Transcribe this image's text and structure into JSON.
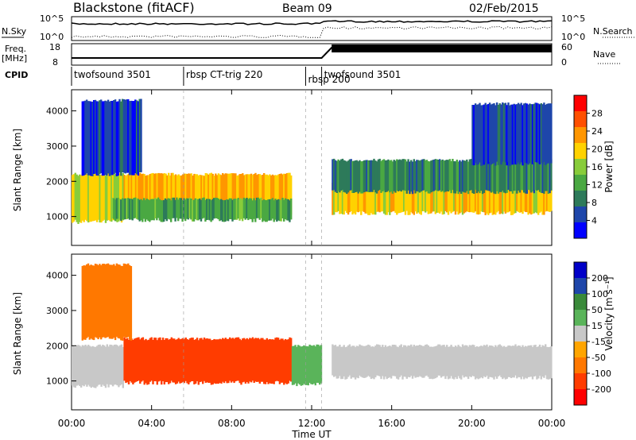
{
  "header": {
    "station": "Blackstone (fitACF)",
    "beam": "Beam 09",
    "date": "02/Feb/2015"
  },
  "top_panels": {
    "nsky_label": "N.Sky",
    "nsky_ticks": [
      "10^5",
      "10^0"
    ],
    "nsearch_label": "N.Search",
    "nsearch_ticks": [
      "10^5",
      "10^0"
    ],
    "freq_label": "Freq.",
    "freq_unit": "[MHz]",
    "freq_ticks": [
      "18",
      "8"
    ],
    "nave_label": "Nave",
    "nave_ticks": [
      "60",
      "0"
    ],
    "cpid_label": "CPID",
    "cpid_segments": [
      {
        "label": "twofsound 3501",
        "start_h": 0.0,
        "end_h": 5.6
      },
      {
        "label": "rbsp CT-trig 220",
        "start_h": 5.6,
        "end_h": 11.7
      },
      {
        "label": "rbsp 200",
        "start_h": 11.7,
        "end_h": 12.5
      },
      {
        "label": "twofsound 3501",
        "start_h": 12.5,
        "end_h": 24.0
      }
    ]
  },
  "chart_data": [
    {
      "type": "heatmap",
      "panel": "power",
      "ylabel": "Slant Range [km]",
      "xlabel": "",
      "x_ticks": [
        "00:00",
        "04:00",
        "08:00",
        "12:00",
        "16:00",
        "20:00",
        "00:00"
      ],
      "xlim_hours": [
        0,
        24
      ],
      "y_ticks": [
        1000,
        2000,
        3000,
        4000
      ],
      "ylim_km": [
        180,
        4600
      ],
      "colorbar_label": "Power [dB]",
      "colorbar_ticks": [
        "28",
        "24",
        "20",
        "16",
        "12",
        "8",
        "4"
      ],
      "colorbar_colors": [
        "#0000ff",
        "#1e46aa",
        "#2d7a5a",
        "#4aa842",
        "#88cc3a",
        "#ffd200",
        "#ff9600",
        "#ff5000",
        "#ff0000"
      ],
      "bands": [
        {
          "t_start": 0.0,
          "t_end": 2.6,
          "range_start": 850,
          "range_end": 2200,
          "value_db": 18
        },
        {
          "t_start": 2.6,
          "t_end": 11.0,
          "range_start": 1100,
          "range_end": 2200,
          "value_db": 22
        },
        {
          "t_start": 2.0,
          "t_end": 11.0,
          "range_start": 900,
          "range_end": 1500,
          "value_db": 12
        },
        {
          "t_start": 13.0,
          "t_end": 24.0,
          "range_start": 1100,
          "range_end": 2000,
          "value_db": 20
        },
        {
          "t_start": 13.0,
          "t_end": 24.0,
          "range_start": 1700,
          "range_end": 2600,
          "value_db": 9
        },
        {
          "t_start": 0.5,
          "t_end": 3.5,
          "range_start": 2200,
          "range_end": 4300,
          "value_db": 5
        },
        {
          "t_start": 20.0,
          "t_end": 24.0,
          "range_start": 2500,
          "range_end": 4200,
          "value_db": 5
        }
      ]
    },
    {
      "type": "heatmap",
      "panel": "velocity",
      "ylabel": "Slant Range [km]",
      "xlabel": "Time UT",
      "x_ticks": [
        "00:00",
        "04:00",
        "08:00",
        "12:00",
        "16:00",
        "20:00",
        "00:00"
      ],
      "xlim_hours": [
        0,
        24
      ],
      "y_ticks": [
        1000,
        2000,
        3000,
        4000
      ],
      "ylim_km": [
        180,
        4600
      ],
      "colorbar_label": "Velocity [m s⁻¹]",
      "colorbar_ticks": [
        "200",
        "100",
        "50",
        "15",
        "-15",
        "-50",
        "-100",
        "-200"
      ],
      "colorbar_colors": [
        "#ff0000",
        "#ff3c00",
        "#ff7800",
        "#ffa500",
        "#c8c8c8",
        "#5ab45a",
        "#3a8a3a",
        "#1e46aa",
        "#0000c8"
      ],
      "bands": [
        {
          "t_start": 0.0,
          "t_end": 2.6,
          "range_start": 850,
          "range_end": 2000,
          "value_ms": 0
        },
        {
          "t_start": 2.6,
          "t_end": 11.0,
          "range_start": 950,
          "range_end": 2200,
          "value_ms": -150
        },
        {
          "t_start": 11.0,
          "t_end": 12.5,
          "range_start": 900,
          "range_end": 2000,
          "value_ms": 20
        },
        {
          "t_start": 13.0,
          "t_end": 24.0,
          "range_start": 1100,
          "range_end": 2000,
          "value_ms": 0
        },
        {
          "t_start": 0.5,
          "t_end": 3.0,
          "range_start": 2200,
          "range_end": 4300,
          "value_ms": -60
        }
      ]
    }
  ]
}
